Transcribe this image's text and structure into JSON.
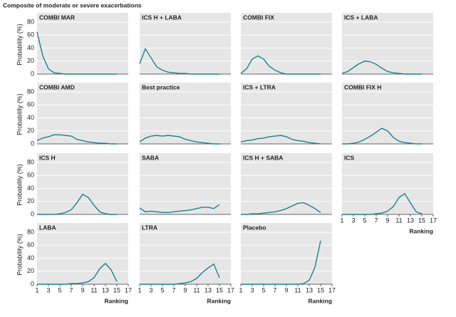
{
  "title": "Composite of moderate or severe exacerbations",
  "chart_data": [
    {
      "type": "line",
      "title": "COMBI MAR",
      "ylabel": "Probability (%)",
      "x": [
        1,
        2,
        3,
        4,
        5,
        6,
        7,
        8,
        9,
        10,
        11,
        12,
        13,
        14,
        15
      ],
      "values": [
        65,
        28,
        8,
        2,
        1,
        0,
        0,
        0,
        0,
        0,
        0,
        0,
        0,
        0,
        0
      ],
      "color": "#1b8290",
      "xlim": [
        1,
        17
      ],
      "ylim": [
        0,
        80
      ],
      "xticks": [
        1,
        3,
        5,
        7,
        9,
        11,
        13,
        15,
        17
      ],
      "yticks": [
        0,
        20,
        40,
        60,
        80
      ],
      "grid": true
    },
    {
      "type": "line",
      "title": "ICS H + LABA",
      "x": [
        1,
        2,
        3,
        4,
        5,
        6,
        7,
        8,
        9,
        10,
        11,
        12,
        13,
        14,
        15
      ],
      "values": [
        16,
        39,
        25,
        11,
        6,
        3,
        2,
        1,
        1,
        0,
        0,
        0,
        0,
        0,
        0
      ],
      "color": "#1b8290",
      "xlim": [
        1,
        17
      ],
      "ylim": [
        0,
        80
      ],
      "xticks": [
        1,
        3,
        5,
        7,
        9,
        11,
        13,
        15,
        17
      ],
      "yticks": [
        0,
        20,
        40,
        60,
        80
      ],
      "grid": true
    },
    {
      "type": "line",
      "title": "COMBI FIX",
      "x": [
        1,
        2,
        3,
        4,
        5,
        6,
        7,
        8,
        9,
        10,
        11,
        12,
        13,
        14,
        15
      ],
      "values": [
        1,
        8,
        23,
        28,
        23,
        12,
        6,
        2,
        0,
        0,
        0,
        0,
        0,
        0,
        0
      ],
      "color": "#1b8290",
      "xlim": [
        1,
        17
      ],
      "ylim": [
        0,
        80
      ],
      "xticks": [
        1,
        3,
        5,
        7,
        9,
        11,
        13,
        15,
        17
      ],
      "yticks": [
        0,
        20,
        40,
        60,
        80
      ],
      "grid": true
    },
    {
      "type": "line",
      "title": "ICS + LABA",
      "x": [
        1,
        2,
        3,
        4,
        5,
        6,
        7,
        8,
        9,
        10,
        11,
        12,
        13,
        14,
        15
      ],
      "values": [
        1,
        4,
        10,
        16,
        20,
        19,
        15,
        9,
        4,
        2,
        1,
        0,
        0,
        0,
        0
      ],
      "color": "#1b8290",
      "xlim": [
        1,
        17
      ],
      "ylim": [
        0,
        80
      ],
      "xticks": [
        1,
        3,
        5,
        7,
        9,
        11,
        13,
        15,
        17
      ],
      "yticks": [
        0,
        20,
        40,
        60,
        80
      ],
      "grid": true
    },
    {
      "type": "line",
      "title": "COMBI AMD",
      "ylabel": "Probability (%)",
      "x": [
        1,
        2,
        3,
        4,
        5,
        6,
        7,
        8,
        9,
        10,
        11,
        12,
        13,
        14,
        15
      ],
      "values": [
        5,
        9,
        11,
        14,
        14,
        13,
        12,
        7,
        5,
        3,
        2,
        1,
        1,
        0,
        0
      ],
      "color": "#1b8290",
      "xlim": [
        1,
        17
      ],
      "ylim": [
        0,
        80
      ],
      "xticks": [
        1,
        3,
        5,
        7,
        9,
        11,
        13,
        15,
        17
      ],
      "yticks": [
        0,
        20,
        40,
        60,
        80
      ],
      "grid": true
    },
    {
      "type": "line",
      "title": "Best practice",
      "x": [
        1,
        2,
        3,
        4,
        5,
        6,
        7,
        8,
        9,
        10,
        11,
        12,
        13,
        14,
        15
      ],
      "values": [
        3,
        9,
        12,
        13,
        12,
        13,
        12,
        11,
        7,
        5,
        3,
        2,
        1,
        0,
        0
      ],
      "color": "#1b8290",
      "xlim": [
        1,
        17
      ],
      "ylim": [
        0,
        80
      ],
      "xticks": [
        1,
        3,
        5,
        7,
        9,
        11,
        13,
        15,
        17
      ],
      "yticks": [
        0,
        20,
        40,
        60,
        80
      ],
      "grid": true
    },
    {
      "type": "line",
      "title": "ICS + LTRA",
      "x": [
        1,
        2,
        3,
        4,
        5,
        6,
        7,
        8,
        9,
        10,
        11,
        12,
        13,
        14,
        15
      ],
      "values": [
        3,
        5,
        6,
        8,
        9,
        11,
        12,
        13,
        11,
        7,
        5,
        4,
        2,
        1,
        0
      ],
      "color": "#1b8290",
      "xlim": [
        1,
        17
      ],
      "ylim": [
        0,
        80
      ],
      "xticks": [
        1,
        3,
        5,
        7,
        9,
        11,
        13,
        15,
        17
      ],
      "yticks": [
        0,
        20,
        40,
        60,
        80
      ],
      "grid": true
    },
    {
      "type": "line",
      "title": "COMBI FIX H",
      "x": [
        1,
        2,
        3,
        4,
        5,
        6,
        7,
        8,
        9,
        10,
        11,
        12,
        13,
        14,
        15
      ],
      "values": [
        0,
        0,
        1,
        3,
        7,
        12,
        18,
        24,
        20,
        10,
        4,
        2,
        1,
        0,
        0
      ],
      "color": "#1b8290",
      "xlim": [
        1,
        17
      ],
      "ylim": [
        0,
        80
      ],
      "xticks": [
        1,
        3,
        5,
        7,
        9,
        11,
        13,
        15,
        17
      ],
      "yticks": [
        0,
        20,
        40,
        60,
        80
      ],
      "grid": true
    },
    {
      "type": "line",
      "title": "ICS H",
      "ylabel": "Probability (%)",
      "x": [
        1,
        2,
        3,
        4,
        5,
        6,
        7,
        8,
        9,
        10,
        11,
        12,
        13,
        14,
        15
      ],
      "values": [
        0,
        0,
        0,
        0,
        1,
        3,
        7,
        18,
        31,
        26,
        14,
        4,
        1,
        0,
        0
      ],
      "color": "#1b8290",
      "xlim": [
        1,
        17
      ],
      "ylim": [
        0,
        80
      ],
      "xticks": [
        1,
        3,
        5,
        7,
        9,
        11,
        13,
        15,
        17
      ],
      "yticks": [
        0,
        20,
        40,
        60,
        80
      ],
      "grid": true
    },
    {
      "type": "line",
      "title": "SABA",
      "x": [
        1,
        2,
        3,
        4,
        5,
        6,
        7,
        8,
        9,
        10,
        11,
        12,
        13,
        14,
        15
      ],
      "values": [
        10,
        4,
        5,
        4,
        3,
        3,
        4,
        5,
        6,
        7,
        9,
        11,
        11,
        9,
        15
      ],
      "color": "#1b8290",
      "xlim": [
        1,
        17
      ],
      "ylim": [
        0,
        80
      ],
      "xticks": [
        1,
        3,
        5,
        7,
        9,
        11,
        13,
        15,
        17
      ],
      "yticks": [
        0,
        20,
        40,
        60,
        80
      ],
      "grid": true
    },
    {
      "type": "line",
      "title": "ICS H + SABA",
      "x": [
        1,
        2,
        3,
        4,
        5,
        6,
        7,
        8,
        9,
        10,
        11,
        12,
        13,
        14,
        15
      ],
      "values": [
        0,
        0,
        1,
        1,
        2,
        3,
        4,
        6,
        9,
        13,
        17,
        18,
        14,
        9,
        3
      ],
      "color": "#1b8290",
      "xlim": [
        1,
        17
      ],
      "ylim": [
        0,
        80
      ],
      "xticks": [
        1,
        3,
        5,
        7,
        9,
        11,
        13,
        15,
        17
      ],
      "yticks": [
        0,
        20,
        40,
        60,
        80
      ],
      "grid": true
    },
    {
      "type": "line",
      "title": "ICS",
      "xlabel": "Ranking",
      "x": [
        1,
        2,
        3,
        4,
        5,
        6,
        7,
        8,
        9,
        10,
        11,
        12,
        13,
        14,
        15
      ],
      "values": [
        0,
        0,
        0,
        0,
        0,
        0,
        1,
        2,
        5,
        12,
        26,
        32,
        18,
        4,
        1
      ],
      "color": "#1b8290",
      "xlim": [
        1,
        17
      ],
      "ylim": [
        0,
        80
      ],
      "xticks": [
        1,
        3,
        5,
        7,
        9,
        11,
        13,
        15,
        17
      ],
      "yticks": [
        0,
        20,
        40,
        60,
        80
      ],
      "grid": true
    },
    {
      "type": "line",
      "title": "LABA",
      "ylabel": "Probability (%)",
      "xlabel": "Ranking",
      "x": [
        1,
        2,
        3,
        4,
        5,
        6,
        7,
        8,
        9,
        10,
        11,
        12,
        13,
        14,
        15
      ],
      "values": [
        0,
        0,
        0,
        0,
        0,
        0,
        1,
        1,
        2,
        4,
        10,
        24,
        32,
        22,
        4
      ],
      "color": "#1b8290",
      "xlim": [
        1,
        17
      ],
      "ylim": [
        0,
        80
      ],
      "xticks": [
        1,
        3,
        5,
        7,
        9,
        11,
        13,
        15,
        17
      ],
      "yticks": [
        0,
        20,
        40,
        60,
        80
      ],
      "grid": true
    },
    {
      "type": "line",
      "title": "LTRA",
      "xlabel": "Ranking",
      "x": [
        1,
        2,
        3,
        4,
        5,
        6,
        7,
        8,
        9,
        10,
        11,
        12,
        13,
        14,
        15
      ],
      "values": [
        0,
        0,
        0,
        0,
        0,
        0,
        0,
        1,
        2,
        4,
        9,
        18,
        25,
        31,
        10
      ],
      "color": "#1b8290",
      "xlim": [
        1,
        17
      ],
      "ylim": [
        0,
        80
      ],
      "xticks": [
        1,
        3,
        5,
        7,
        9,
        11,
        13,
        15,
        17
      ],
      "yticks": [
        0,
        20,
        40,
        60,
        80
      ],
      "grid": true
    },
    {
      "type": "line",
      "title": "Placebo",
      "xlabel": "Ranking",
      "x": [
        1,
        2,
        3,
        4,
        5,
        6,
        7,
        8,
        9,
        10,
        11,
        12,
        13,
        14,
        15
      ],
      "values": [
        0,
        0,
        0,
        0,
        0,
        0,
        0,
        0,
        0,
        0,
        0,
        1,
        6,
        26,
        67
      ],
      "color": "#1b8290",
      "xlim": [
        1,
        17
      ],
      "ylim": [
        0,
        80
      ],
      "xticks": [
        1,
        3,
        5,
        7,
        9,
        11,
        13,
        15,
        17
      ],
      "yticks": [
        0,
        20,
        40,
        60,
        80
      ],
      "grid": true
    }
  ]
}
